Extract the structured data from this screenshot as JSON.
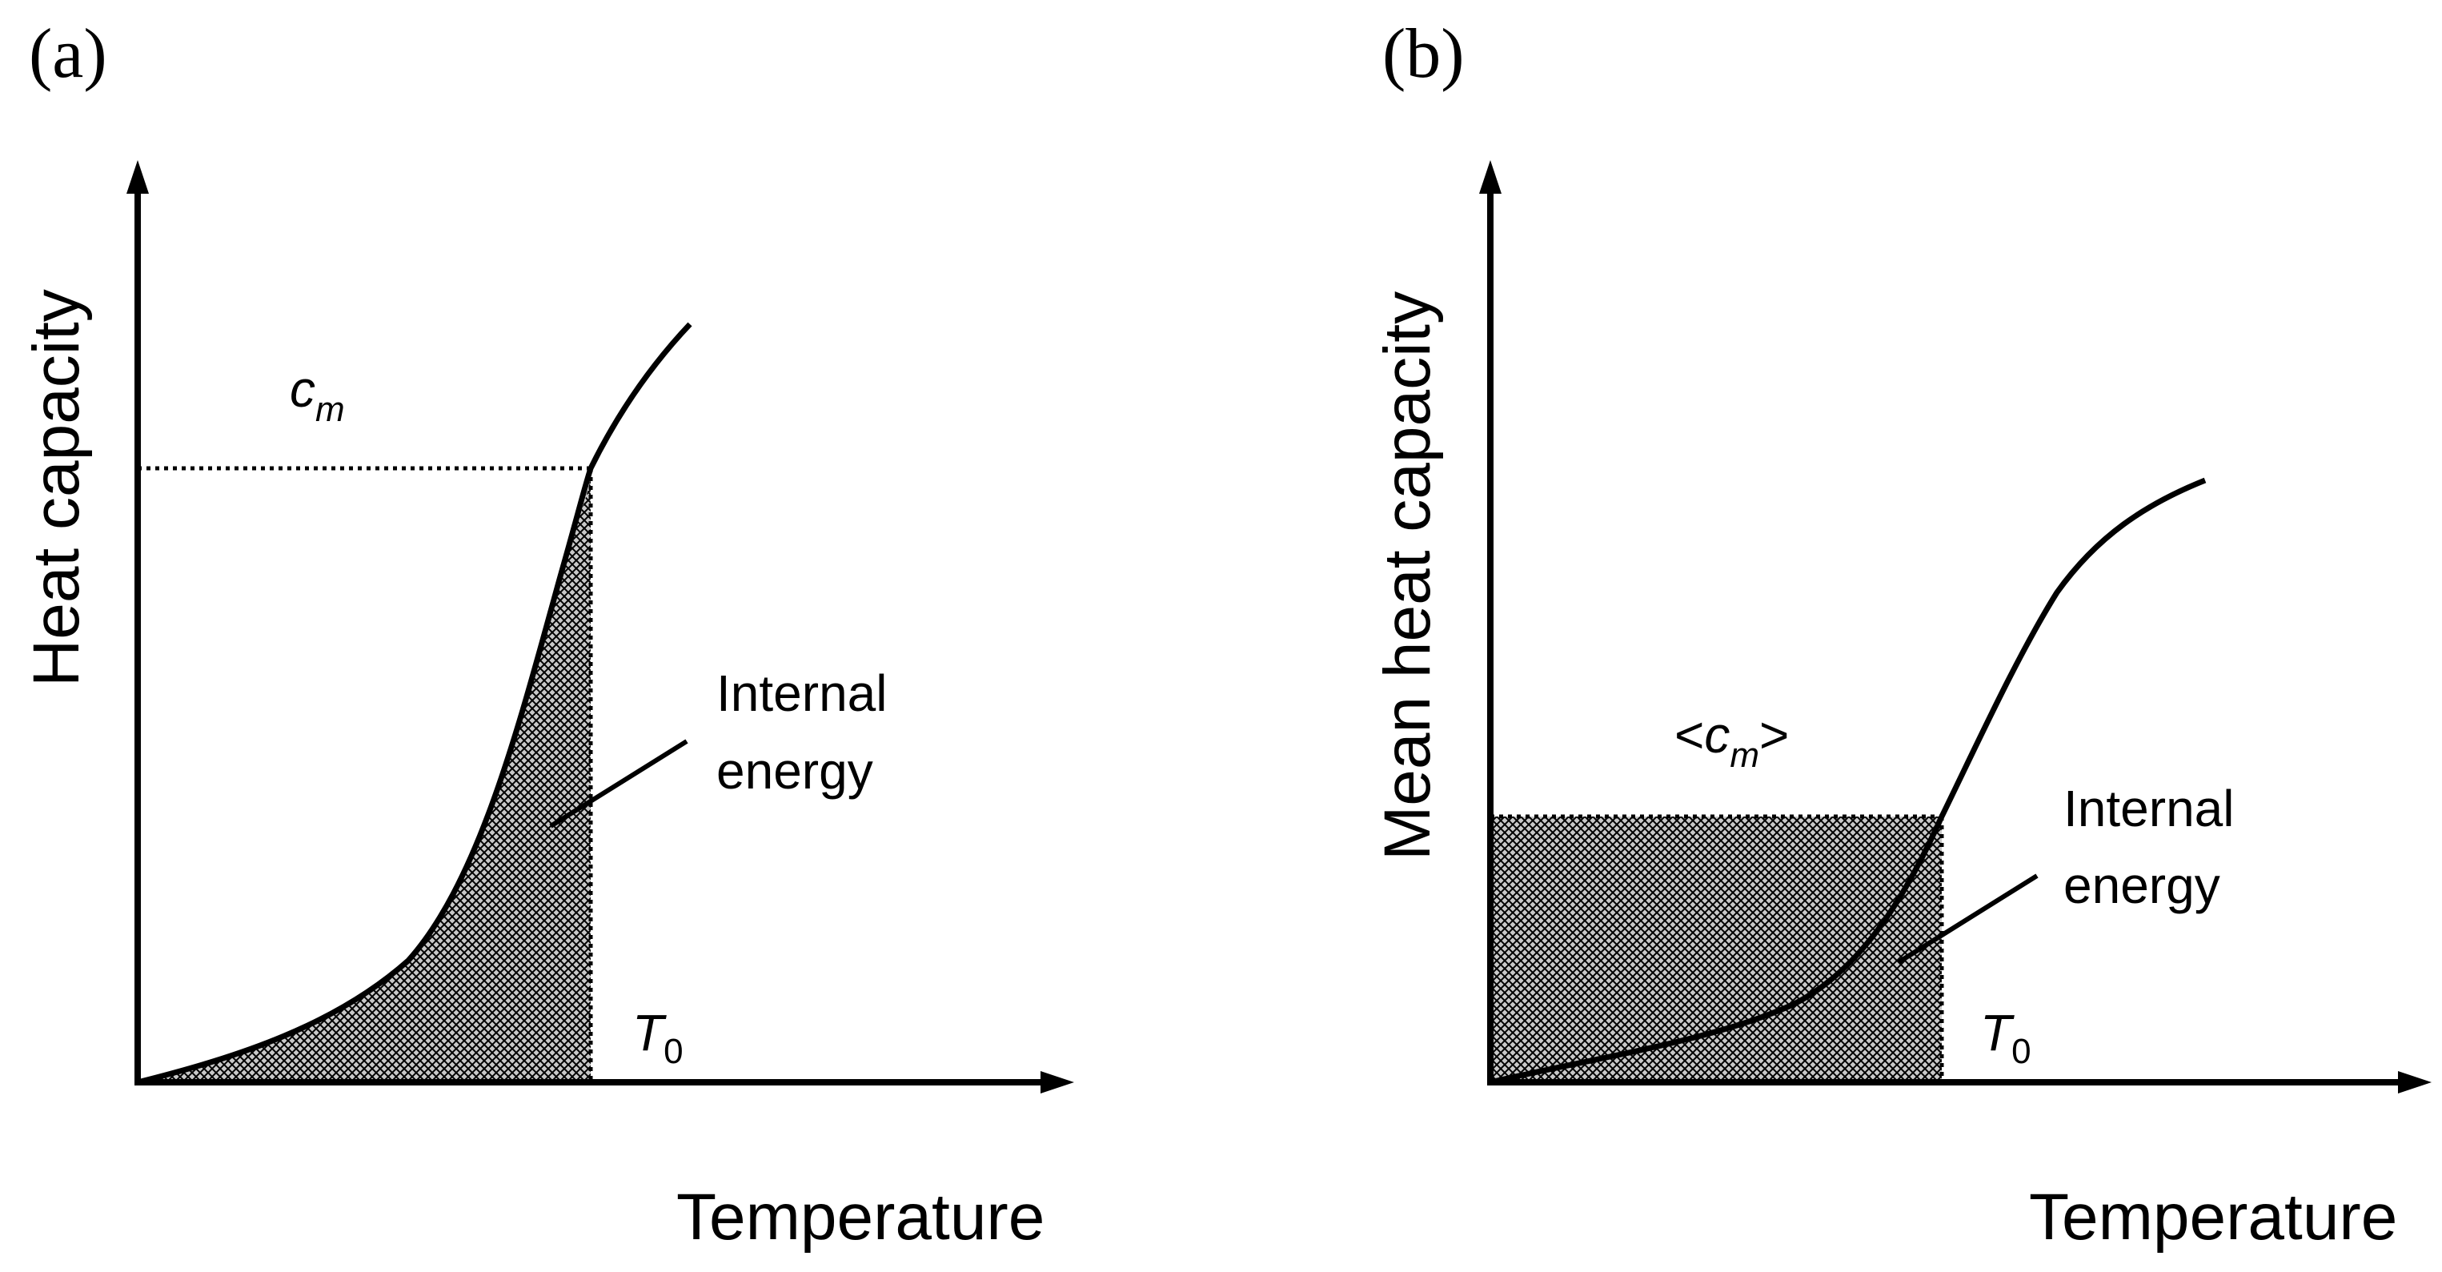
{
  "colors": {
    "ink": "#000000",
    "hatch_background": "#c8c8c8",
    "background": "#ffffff"
  },
  "panel_a": {
    "label": "(a)",
    "y_axis_title": "Heat capacity",
    "x_axis_title": "Temperature",
    "level_label": "c",
    "level_label_subscript": "m",
    "shaded_label_line1": "Internal",
    "shaded_label_line2": "energy",
    "t_marker": "T",
    "t_marker_subscript": "0"
  },
  "panel_b": {
    "label": "(b)",
    "y_axis_title": "Mean heat capacity",
    "x_axis_title": "Temperature",
    "level_label_open": "<",
    "level_label": "c",
    "level_label_subscript": "m",
    "level_label_close": ">",
    "shaded_label_line1": "Internal",
    "shaded_label_line2": "energy",
    "t_marker": "T",
    "t_marker_subscript": "0"
  }
}
